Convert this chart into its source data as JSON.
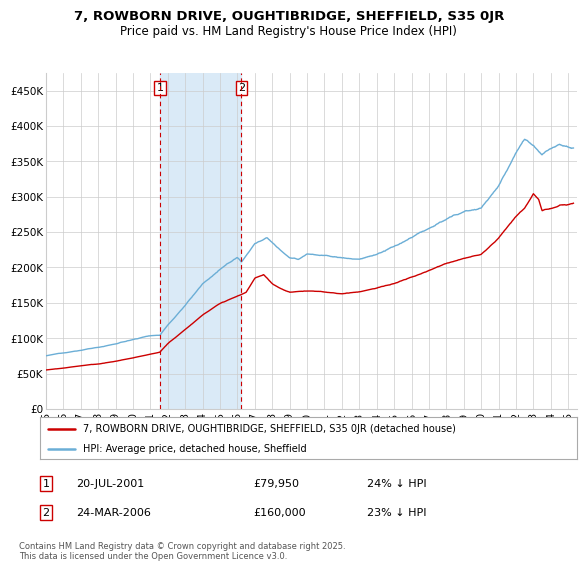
{
  "title_line1": "7, ROWBORN DRIVE, OUGHTIBRIDGE, SHEFFIELD, S35 0JR",
  "title_line2": "Price paid vs. HM Land Registry's House Price Index (HPI)",
  "ylim": [
    0,
    475000
  ],
  "yticks": [
    0,
    50000,
    100000,
    150000,
    200000,
    250000,
    300000,
    350000,
    400000,
    450000
  ],
  "ytick_labels": [
    "£0",
    "£50K",
    "£100K",
    "£150K",
    "£200K",
    "£250K",
    "£300K",
    "£350K",
    "£400K",
    "£450K"
  ],
  "xlim_start": 1995.0,
  "xlim_end": 2025.5,
  "transaction1_year": 2001.55,
  "transaction2_year": 2006.23,
  "transaction1_label": "1",
  "transaction2_label": "2",
  "legend_line1": "7, ROWBORN DRIVE, OUGHTIBRIDGE, SHEFFIELD, S35 0JR (detached house)",
  "legend_line2": "HPI: Average price, detached house, Sheffield",
  "table_row1": [
    "1",
    "20-JUL-2001",
    "£79,950",
    "24% ↓ HPI"
  ],
  "table_row2": [
    "2",
    "24-MAR-2006",
    "£160,000",
    "23% ↓ HPI"
  ],
  "footnote": "Contains HM Land Registry data © Crown copyright and database right 2025.\nThis data is licensed under the Open Government Licence v3.0.",
  "hpi_color": "#6baed6",
  "price_color": "#cc0000",
  "shade_color": "#daeaf7",
  "grid_color": "#cccccc",
  "background_color": "#ffffff"
}
